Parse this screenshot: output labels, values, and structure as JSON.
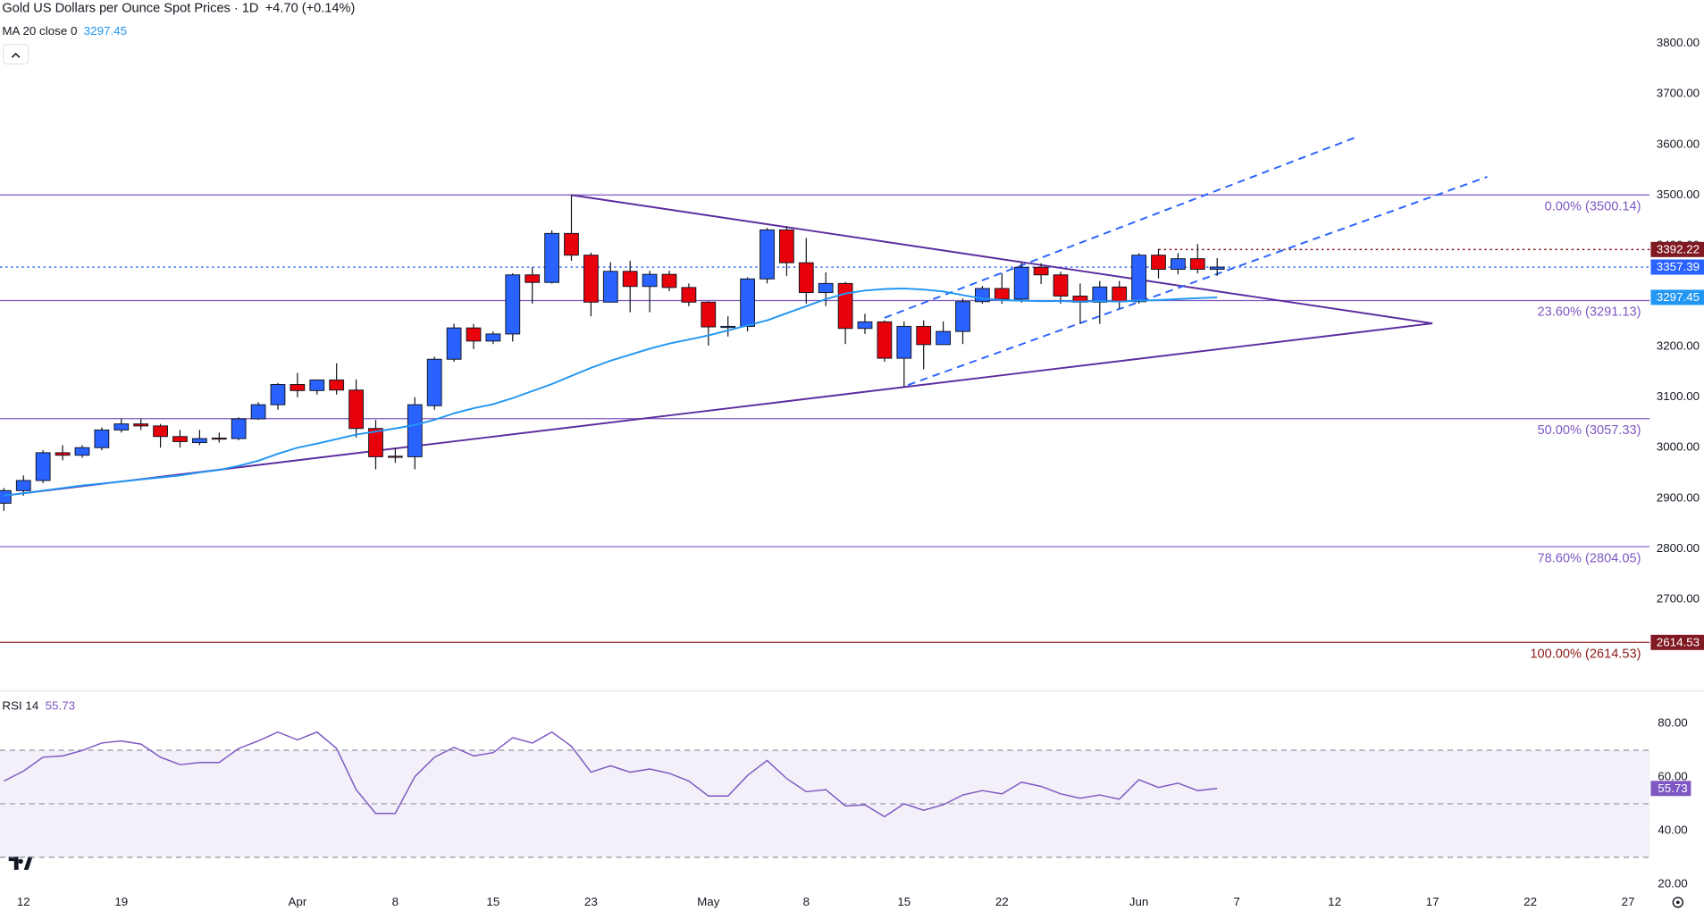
{
  "chart_data": {
    "type": "candlestick",
    "title": "Gold US Dollars per Ounce Spot Prices · 1D",
    "change": "+4.70 (+0.14%)",
    "up_color": "#2962ff",
    "down_color": "#e8000b",
    "xlim": [
      -0.2,
      84.1
    ],
    "ylim": [
      2523,
      3886
    ],
    "xticks": [
      {
        "value": 1,
        "label": "12"
      },
      {
        "value": 6,
        "label": "19"
      },
      {
        "value": 15,
        "label": "Apr"
      },
      {
        "value": 20,
        "label": "8"
      },
      {
        "value": 25,
        "label": "15"
      },
      {
        "value": 30,
        "label": "23"
      },
      {
        "value": 36,
        "label": "May"
      },
      {
        "value": 41,
        "label": "8"
      },
      {
        "value": 46,
        "label": "15"
      },
      {
        "value": 51,
        "label": "22"
      },
      {
        "value": 58,
        "label": "Jun"
      },
      {
        "value": 63,
        "label": "7"
      },
      {
        "value": 68,
        "label": "12"
      },
      {
        "value": 73,
        "label": "17"
      },
      {
        "value": 78,
        "label": "22"
      },
      {
        "value": 83,
        "label": "27"
      }
    ],
    "yticks": [
      {
        "value": 2700,
        "label": "2700.00"
      },
      {
        "value": 2800,
        "label": "2800.00"
      },
      {
        "value": 2900,
        "label": "2900.00"
      },
      {
        "value": 3000,
        "label": "3000.00"
      },
      {
        "value": 3100,
        "label": "3100.00"
      },
      {
        "value": 3200,
        "label": "3200.00"
      },
      {
        "value": 3300,
        "label": "3300.00"
      },
      {
        "value": 3400,
        "label": "3400.00"
      },
      {
        "value": 3500,
        "label": "3500.00"
      },
      {
        "value": 3600,
        "label": "3600.00"
      },
      {
        "value": 3700,
        "label": "3700.00"
      },
      {
        "value": 3800,
        "label": "3800.00"
      }
    ],
    "grid": false,
    "open": [
      2890,
      2915,
      2935,
      2990,
      2985,
      3000,
      3035,
      3047,
      3043,
      3022,
      3010,
      3019,
      3018,
      3057,
      3085,
      3125,
      3113,
      3134,
      3114,
      3038,
      2983,
      2982,
      3083,
      3175,
      3237,
      3211,
      3225,
      3342,
      3327,
      3424,
      3381,
      3288,
      3349,
      3319,
      3343,
      3317,
      3288,
      3239,
      3240,
      3334,
      3431,
      3366,
      3307,
      3325,
      3236,
      3249,
      3177,
      3240,
      3204,
      3230,
      3289,
      3315,
      3294,
      3357,
      3342,
      3300,
      3288,
      3318,
      3289,
      3381,
      3353,
      3374,
      3353
    ],
    "high": [
      2920,
      2945,
      2995,
      3005,
      3005,
      3040,
      3057,
      3057,
      3047,
      3035,
      3035,
      3030,
      3060,
      3090,
      3128,
      3148,
      3135,
      3167,
      3135,
      3055,
      3000,
      3100,
      3180,
      3245,
      3245,
      3230,
      3345,
      3357,
      3430,
      3500,
      3386,
      3367,
      3370,
      3350,
      3350,
      3325,
      3290,
      3260,
      3337,
      3435,
      3438,
      3415,
      3347,
      3328,
      3265,
      3252,
      3250,
      3252,
      3250,
      3295,
      3320,
      3345,
      3366,
      3365,
      3348,
      3325,
      3330,
      3330,
      3385,
      3393,
      3385,
      3403,
      3375
    ],
    "low": [
      2875,
      2905,
      2930,
      2975,
      2980,
      2995,
      3030,
      3035,
      3000,
      3000,
      3005,
      3010,
      3015,
      3055,
      3075,
      3100,
      3105,
      3105,
      3020,
      2957,
      2970,
      2957,
      3075,
      3170,
      3195,
      3205,
      3210,
      3285,
      3325,
      3370,
      3260,
      3287,
      3268,
      3268,
      3310,
      3280,
      3202,
      3220,
      3230,
      3325,
      3340,
      3285,
      3280,
      3205,
      3225,
      3170,
      3120,
      3155,
      3205,
      3205,
      3285,
      3285,
      3287,
      3324,
      3285,
      3245,
      3245,
      3275,
      3285,
      3335,
      3343,
      3345,
      3340
    ],
    "close": [
      2915,
      2935,
      2990,
      2985,
      3000,
      3035,
      3047,
      3043,
      3022,
      3012,
      3018,
      3017,
      3057,
      3085,
      3125,
      3113,
      3134,
      3114,
      3038,
      2982,
      2982,
      3085,
      3175,
      3237,
      3211,
      3225,
      3342,
      3327,
      3424,
      3381,
      3288,
      3349,
      3319,
      3343,
      3317,
      3288,
      3239,
      3240,
      3334,
      3431,
      3366,
      3307,
      3325,
      3236,
      3249,
      3177,
      3240,
      3204,
      3230,
      3289,
      3315,
      3294,
      3357,
      3342,
      3300,
      3288,
      3318,
      3289,
      3381,
      3353,
      3374,
      3353,
      3357.39
    ],
    "ma": {
      "name": "MA 20 close 0",
      "color": "#2196f3",
      "values": [
        2905,
        2910,
        2915,
        2920,
        2925,
        2929,
        2933,
        2937,
        2941,
        2945,
        2951,
        2956,
        2964,
        2974,
        2988,
        3000,
        3008,
        3017,
        3026,
        3032,
        3038,
        3045,
        3055,
        3068,
        3078,
        3086,
        3098,
        3112,
        3126,
        3142,
        3158,
        3172,
        3184,
        3196,
        3206,
        3214,
        3222,
        3232,
        3242,
        3252,
        3266,
        3280,
        3294,
        3305,
        3311,
        3314,
        3315,
        3313,
        3309,
        3302,
        3295,
        3292,
        3291,
        3290,
        3290,
        3289,
        3290,
        3289,
        3291,
        3292,
        3294,
        3296,
        3297.45
      ]
    },
    "fib_levels": [
      {
        "value": 3500.14,
        "label": "0.00% (3500.14)",
        "color": "#7e57c2"
      },
      {
        "value": 3291.13,
        "label": "23.60% (3291.13)",
        "color": "#7e57c2"
      },
      {
        "value": 3057.33,
        "label": "50.00% (3057.33)",
        "color": "#7e57c2"
      },
      {
        "value": 2804.05,
        "label": "78.60% (2804.05)",
        "color": "#7e57c2"
      },
      {
        "value": 2614.53,
        "label": "100.00% (2614.53)",
        "color": "#8b1a1a"
      }
    ],
    "price_tags": [
      {
        "value": 3392.22,
        "color": "#801922",
        "start": 59
      },
      {
        "value": 3357.39,
        "color": "#2962ff",
        "start": -0.2
      },
      {
        "value": 3297.45,
        "color": "#2196f3"
      },
      {
        "value": 2614.53,
        "color": "#801922"
      }
    ],
    "drawings": [
      {
        "style": "solid",
        "color": "#5b2c9e",
        "points": [
          [
            0,
            2905
          ],
          [
            73,
            3246
          ]
        ]
      },
      {
        "style": "solid",
        "color": "#5b2c9e",
        "points": [
          [
            29,
            3500
          ],
          [
            73,
            3246
          ]
        ]
      },
      {
        "style": "dashed",
        "color": "#2962ff",
        "points": [
          [
            45,
            3257
          ],
          [
            69,
            3613
          ]
        ]
      },
      {
        "style": "dashed",
        "color": "#2962ff",
        "points": [
          [
            46.2,
            3124
          ],
          [
            75.8,
            3536
          ]
        ]
      }
    ],
    "rsi": {
      "name": "RSI 14",
      "color": "#7e57c2",
      "ylim": [
        16,
        91
      ],
      "yticks": [
        {
          "value": 20,
          "label": "20.00"
        },
        {
          "value": 40,
          "label": "40.00"
        },
        {
          "value": 60,
          "label": "60.00"
        },
        {
          "value": 80,
          "label": "80.00"
        }
      ],
      "bands": [
        30,
        70
      ],
      "mid": 50,
      "values": [
        58.5,
        62.2,
        67.4,
        67.9,
        69.9,
        72.7,
        73.5,
        72.3,
        67.4,
        64.6,
        65.4,
        65.4,
        70.7,
        73.5,
        76.8,
        73.9,
        76.8,
        70.7,
        55.3,
        46.4,
        46.4,
        60.2,
        67.4,
        71.1,
        67.9,
        69.1,
        74.7,
        72.7,
        76.8,
        71.5,
        61.8,
        64.2,
        61.8,
        63.0,
        61.4,
        58.5,
        52.9,
        52.9,
        60.6,
        66.2,
        59.4,
        54.5,
        55.3,
        49.2,
        49.6,
        45.2,
        50.0,
        47.6,
        49.6,
        53.3,
        54.9,
        53.7,
        58.1,
        56.5,
        53.7,
        52.1,
        53.3,
        51.7,
        59.0,
        56.1,
        57.7,
        54.9,
        55.73
      ]
    }
  }
}
